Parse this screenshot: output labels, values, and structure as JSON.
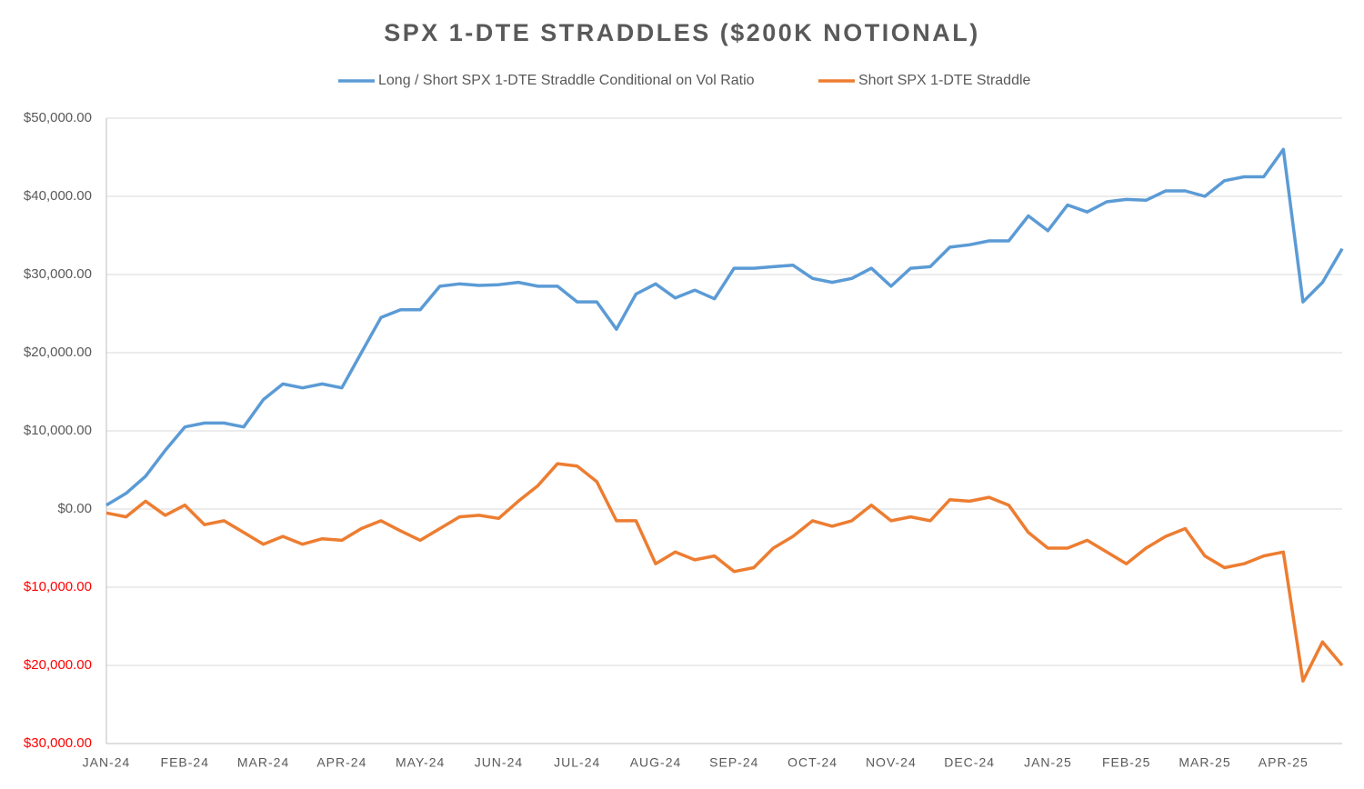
{
  "chart_data": {
    "type": "line",
    "title": "SPX 1-DTE STRADDLES ($200K NOTIONAL)",
    "categories": [
      "JAN-24",
      null,
      null,
      null,
      "FEB-24",
      null,
      null,
      null,
      "MAR-24",
      null,
      null,
      null,
      "APR-24",
      null,
      null,
      null,
      "MAY-24",
      null,
      null,
      null,
      "JUN-24",
      null,
      null,
      null,
      "JUL-24",
      null,
      null,
      null,
      "AUG-24",
      null,
      null,
      null,
      "SEP-24",
      null,
      null,
      null,
      "OCT-24",
      null,
      null,
      null,
      "NOV-24",
      null,
      null,
      null,
      "DEC-24",
      null,
      null,
      null,
      "JAN-25",
      null,
      null,
      null,
      "FEB-25",
      null,
      null,
      null,
      "MAR-25",
      null,
      null,
      null,
      "APR-25",
      null,
      null,
      null
    ],
    "series": [
      {
        "name": "Long / Short SPX 1-DTE Straddle Conditional on Vol Ratio",
        "color": "#5b9bd5",
        "values": [
          500,
          2000,
          4200,
          7500,
          10500,
          11000,
          11000,
          10500,
          14000,
          16000,
          15500,
          16000,
          15500,
          20000,
          24500,
          25500,
          25500,
          28500,
          28800,
          28600,
          28700,
          29000,
          28500,
          28500,
          26500,
          26500,
          23000,
          27500,
          28800,
          27000,
          28000,
          26900,
          30800,
          30800,
          31000,
          31200,
          29500,
          29000,
          29500,
          30800,
          28500,
          30800,
          31000,
          33500,
          33800,
          34300,
          34300,
          37500,
          35600,
          38900,
          38000,
          39300,
          39600,
          39500,
          40700,
          40700,
          40000,
          42000,
          42500,
          42500,
          46000,
          26500,
          29000,
          33300
        ]
      },
      {
        "name": "Short SPX 1-DTE Straddle",
        "color": "#ed7d31",
        "values": [
          -500,
          -1000,
          1000,
          -800,
          500,
          -2000,
          -1500,
          -3000,
          -4500,
          -3500,
          -4500,
          -3800,
          -4000,
          -2500,
          -1500,
          -2800,
          -4000,
          -2500,
          -1000,
          -800,
          -1200,
          1000,
          3000,
          5800,
          5500,
          3500,
          -1500,
          -1500,
          -7000,
          -5500,
          -6500,
          -6000,
          -8000,
          -7500,
          -5000,
          -3500,
          -1500,
          -2200,
          -1500,
          500,
          -1500,
          -1000,
          -1500,
          1200,
          1000,
          1500,
          500,
          -3000,
          -5000,
          -5000,
          -4000,
          -5500,
          -7000,
          -5000,
          -3500,
          -2500,
          -6000,
          -7500,
          -7000,
          -6000,
          -5500,
          -22000,
          -17000,
          -20000
        ]
      }
    ],
    "ylim": [
      -30000,
      50000
    ],
    "yticks": [
      {
        "value": -30000,
        "label": "$30,000.00"
      },
      {
        "value": -20000,
        "label": "$20,000.00"
      },
      {
        "value": -10000,
        "label": "$10,000.00"
      },
      {
        "value": 0,
        "label": "$0.00"
      },
      {
        "value": 10000,
        "label": "$10,000.00"
      },
      {
        "value": 20000,
        "label": "$20,000.00"
      },
      {
        "value": 30000,
        "label": "$30,000.00"
      },
      {
        "value": 40000,
        "label": "$40,000.00"
      },
      {
        "value": 50000,
        "label": "$50,000.00"
      }
    ],
    "negative_tick_color": "#ff0000",
    "grid": true,
    "legend": "top"
  }
}
